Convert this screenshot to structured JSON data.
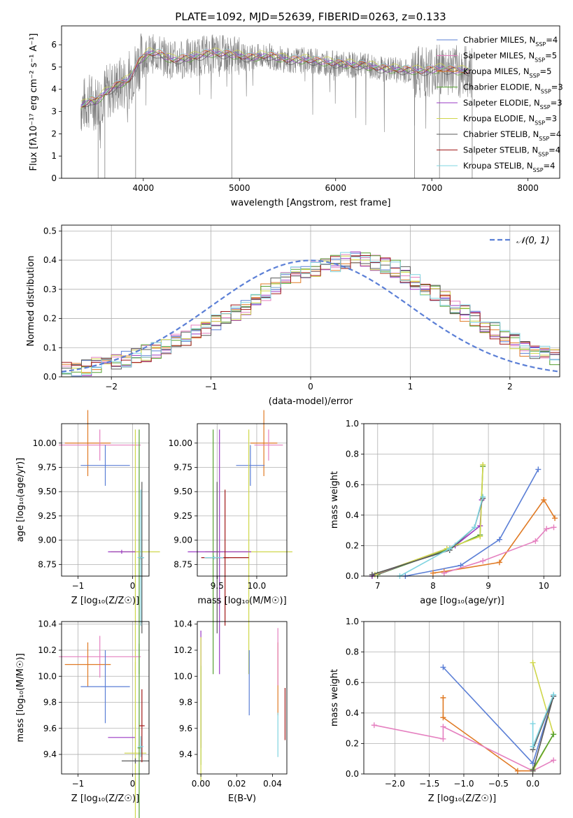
{
  "colors": {
    "blue": "#5b7fd6",
    "pink": "#e580c0",
    "orange": "#e07a24",
    "green": "#55a030",
    "purple": "#9a38c4",
    "yellow": "#cfd64a",
    "gray": "#5a5a5a",
    "red": "#a01818",
    "cyan": "#7fd4e0",
    "spectrum": "#808080",
    "grid": "#b0b0b0"
  },
  "chart_data": [
    {
      "type": "line",
      "title": "PLATE=1092, MJD=52639, FIBERID=0263, z=0.133",
      "xlabel": "wavelength [Angstrom, rest frame]",
      "ylabel": "Flux [fλ10⁻¹⁷ erg cm⁻² s⁻¹ A⁻¹]",
      "xlim": [
        3150,
        8330
      ],
      "ylim": [
        0,
        6.85
      ],
      "xticks": [
        "4000",
        "5000",
        "6000",
        "7000",
        "8000"
      ],
      "yticks": [
        "0",
        "1",
        "2",
        "3",
        "4",
        "5",
        "6"
      ],
      "grid": false,
      "legend_position": "right",
      "series": [
        {
          "name": "Chabrier MILES, N_SSP=4",
          "key": "blue"
        },
        {
          "name": "Salpeter MILES, N_SSP=5",
          "key": "pink"
        },
        {
          "name": "Kroupa MILES, N_SSP=5",
          "key": "orange"
        },
        {
          "name": "Chabrier ELODIE, N_SSP=3",
          "key": "green"
        },
        {
          "name": "Salpeter ELODIE, N_SSP=3",
          "key": "purple"
        },
        {
          "name": "Kroupa ELODIE, N_SSP=3",
          "key": "yellow"
        },
        {
          "name": "Chabrier STELIB, N_SSP=4",
          "key": "gray"
        },
        {
          "name": "Salpeter STELIB, N_SSP=4",
          "key": "red"
        },
        {
          "name": "Kroupa STELIB, N_SSP=4",
          "key": "cyan"
        }
      ],
      "continuum_x": [
        3350,
        3450,
        3500,
        3550,
        3600,
        3700,
        3800,
        3850,
        3950,
        4050,
        4150,
        4300,
        4500,
        4700,
        4900,
        5100,
        5300,
        5500,
        5700,
        5900,
        6100,
        6300,
        6500,
        6700,
        6900,
        7100,
        7300,
        7400
      ],
      "continuum_y": [
        3.2,
        3.5,
        3.4,
        3.6,
        3.8,
        4.1,
        4.3,
        4.4,
        5.2,
        5.6,
        5.6,
        5.3,
        5.4,
        5.6,
        5.55,
        5.4,
        5.5,
        5.3,
        5.3,
        5.2,
        5.1,
        5.05,
        4.9,
        4.85,
        4.8,
        4.9,
        4.8,
        4.8
      ]
    },
    {
      "type": "bar",
      "xlabel": "(data-model)/error",
      "ylabel": "Normed distribution",
      "xlim": [
        -2.5,
        2.5
      ],
      "ylim": [
        0,
        0.52
      ],
      "xticks": [
        "−2",
        "−1",
        "0",
        "1",
        "2"
      ],
      "yticks": [
        "0.0",
        "0.1",
        "0.2",
        "0.3",
        "0.4",
        "0.5"
      ],
      "grid": true,
      "legend_position": "top-right",
      "legend": "𝒩(0, 1)",
      "bin_width": 0.1,
      "bin_start": -2.5,
      "series_values": [
        0.02,
        0.02,
        0.03,
        0.04,
        0.04,
        0.05,
        0.06,
        0.07,
        0.08,
        0.09,
        0.1,
        0.12,
        0.13,
        0.15,
        0.17,
        0.19,
        0.2,
        0.22,
        0.24,
        0.27,
        0.29,
        0.31,
        0.33,
        0.35,
        0.36,
        0.37,
        0.38,
        0.39,
        0.4,
        0.41,
        0.4,
        0.39,
        0.38,
        0.37,
        0.35,
        0.33,
        0.31,
        0.29,
        0.27,
        0.24,
        0.22,
        0.2,
        0.18,
        0.16,
        0.14,
        0.12,
        0.1,
        0.09,
        0.08,
        0.07
      ]
    },
    {
      "type": "scatter",
      "xlabel": "Z [log₁₀(Z/Z☉)]",
      "ylabel": "age  [log₁₀(age/yr)]",
      "xlim": [
        -1.3,
        0.3
      ],
      "ylim": [
        8.63,
        10.2
      ],
      "xticks": [
        "−1",
        "0"
      ],
      "yticks": [
        "8.75",
        "9.00",
        "9.25",
        "9.50",
        "9.75",
        "10.00"
      ],
      "grid": true,
      "crosses": [
        {
          "key": "orange",
          "x": -0.82,
          "y": 10.0,
          "xe": 0.42,
          "ye": 0.34
        },
        {
          "key": "pink",
          "x": -0.6,
          "y": 9.98,
          "xe": 0.75,
          "ye": 0.16
        },
        {
          "key": "blue",
          "x": -0.5,
          "y": 9.77,
          "xe": 0.45,
          "ye": 0.21
        },
        {
          "key": "green",
          "x": 0.12,
          "y": 8.88,
          "xe": 0.03,
          "ye": 1.26
        },
        {
          "key": "yellow",
          "x": 0.05,
          "y": 8.88,
          "xe": 0.45,
          "ye": 1.26
        },
        {
          "key": "purple",
          "x": -0.2,
          "y": 8.88,
          "xe": 0.25,
          "ye": 0.02
        },
        {
          "key": "gray",
          "x": 0.17,
          "y": 8.82,
          "xe": 0.04,
          "ye": 0.78
        },
        {
          "key": "red",
          "x": 0.15,
          "y": 8.82,
          "xe": 0.03,
          "ye": 0.02
        },
        {
          "key": "cyan",
          "x": 0.15,
          "y": 8.82,
          "xe": 0.06,
          "ye": 0.7
        }
      ]
    },
    {
      "type": "scatter",
      "xlabel": "mass [log₁₀(M/M☉)]",
      "ylabel": "",
      "xlim": [
        9.25,
        10.38
      ],
      "ylim": [
        8.63,
        10.2
      ],
      "xticks": [
        "9.5",
        "10.0"
      ],
      "yticks": [
        "8.75",
        "9.00",
        "9.25",
        "9.50",
        "9.75",
        "10.00"
      ],
      "grid": true,
      "crosses": [
        {
          "key": "orange",
          "x": 10.09,
          "y": 10.0,
          "xe": 0.17,
          "ye": 0.34
        },
        {
          "key": "pink",
          "x": 10.15,
          "y": 9.98,
          "xe": 0.18,
          "ye": 0.16
        },
        {
          "key": "blue",
          "x": 9.92,
          "y": 9.77,
          "xe": 0.18,
          "ye": 0.21
        },
        {
          "key": "yellow",
          "x": 9.9,
          "y": 8.88,
          "xe": 0.55,
          "ye": 1.26
        },
        {
          "key": "green",
          "x": 9.45,
          "y": 8.88,
          "xe": 0.02,
          "ye": 1.26
        },
        {
          "key": "purple",
          "x": 9.53,
          "y": 8.88,
          "xe": 0.4,
          "ye": 1.26
        },
        {
          "key": "gray",
          "x": 9.5,
          "y": 8.82,
          "xe": 0.15,
          "ye": 0.78
        },
        {
          "key": "red",
          "x": 9.6,
          "y": 8.82,
          "xe": 0.3,
          "ye": 0.7
        },
        {
          "key": "cyan",
          "x": 9.46,
          "y": 8.82,
          "xe": 0.12,
          "ye": 0.02
        }
      ]
    },
    {
      "type": "line",
      "xlabel": "age  [log₁₀(age/yr)]",
      "ylabel": "mass weight",
      "xlim": [
        6.75,
        10.3
      ],
      "ylim": [
        0,
        1.0
      ],
      "xticks": [
        "7",
        "8",
        "9",
        "10"
      ],
      "yticks": [
        "0.0",
        "0.2",
        "0.4",
        "0.6",
        "0.8",
        "1.0"
      ],
      "grid": true,
      "series": [
        {
          "key": "blue",
          "x": [
            7.5,
            8.5,
            9.2,
            9.9
          ],
          "y": [
            0.0,
            0.07,
            0.24,
            0.7
          ]
        },
        {
          "key": "orange",
          "x": [
            8.0,
            8.2,
            9.2,
            10.0,
            10.2
          ],
          "y": [
            0.02,
            0.03,
            0.09,
            0.5,
            0.38
          ]
        },
        {
          "key": "pink",
          "x": [
            8.2,
            8.9,
            9.85,
            10.05,
            10.18
          ],
          "y": [
            0.02,
            0.1,
            0.23,
            0.31,
            0.32
          ]
        },
        {
          "key": "green",
          "x": [
            7.0,
            8.3,
            8.85,
            8.9
          ],
          "y": [
            0.01,
            0.18,
            0.27,
            0.72
          ]
        },
        {
          "key": "purple",
          "x": [
            6.9,
            8.4,
            8.85,
            8.88
          ],
          "y": [
            0.0,
            0.2,
            0.33,
            0.5
          ]
        },
        {
          "key": "yellow",
          "x": [
            6.95,
            8.25,
            8.85,
            8.9
          ],
          "y": [
            0.01,
            0.18,
            0.26,
            0.73
          ]
        },
        {
          "key": "gray",
          "x": [
            6.9,
            8.3,
            8.75,
            8.9
          ],
          "y": [
            0.01,
            0.17,
            0.32,
            0.51
          ]
        },
        {
          "key": "cyan",
          "x": [
            7.4,
            8.3,
            8.75,
            8.9
          ],
          "y": [
            0.0,
            0.18,
            0.32,
            0.52
          ]
        }
      ]
    },
    {
      "type": "scatter",
      "xlabel": "Z [log₁₀(Z/Z☉)]",
      "ylabel": "mass [log₁₀(M/M☉)]",
      "xlim": [
        -1.3,
        0.3
      ],
      "ylim": [
        9.25,
        10.42
      ],
      "xticks": [
        "−1",
        "0"
      ],
      "yticks": [
        "9.4",
        "9.6",
        "9.8",
        "10.0",
        "10.2",
        "10.4"
      ],
      "grid": true,
      "crosses": [
        {
          "key": "pink",
          "x": -0.6,
          "y": 10.15,
          "xe": 0.75,
          "ye": 0.16
        },
        {
          "key": "orange",
          "x": -0.82,
          "y": 10.09,
          "xe": 0.42,
          "ye": 0.17
        },
        {
          "key": "blue",
          "x": -0.5,
          "y": 9.92,
          "xe": 0.45,
          "ye": 0.28
        },
        {
          "key": "purple",
          "x": -0.2,
          "y": 9.53,
          "xe": 0.25,
          "ye": 0.0
        },
        {
          "key": "yellow",
          "x": 0.05,
          "y": 9.41,
          "xe": 0.2,
          "ye": 0.7
        },
        {
          "key": "green",
          "x": 0.12,
          "y": 9.45,
          "xe": 0.03,
          "ye": 0.8
        },
        {
          "key": "gray",
          "x": 0.05,
          "y": 9.35,
          "xe": 0.25,
          "ye": 0.02
        },
        {
          "key": "red",
          "x": 0.17,
          "y": 9.62,
          "xe": 0.05,
          "ye": 0.28
        },
        {
          "key": "cyan",
          "x": 0.15,
          "y": 9.46,
          "xe": 0.05,
          "ye": 0.08
        }
      ]
    },
    {
      "type": "scatter",
      "xlabel": "E(B-V)",
      "ylabel": "",
      "xlim": [
        -0.002,
        0.048
      ],
      "ylim": [
        9.25,
        10.42
      ],
      "xticks": [
        "0.00",
        "0.02",
        "0.04"
      ],
      "yticks": [
        "9.4",
        "9.6",
        "9.8",
        "10.0",
        "10.2",
        "10.4"
      ],
      "grid": false,
      "crosses": [
        {
          "key": "purple",
          "x": 0.0,
          "y": 9.9,
          "xe": 0.0,
          "ye": 0.45
        },
        {
          "key": "green",
          "x": 0.0,
          "y": 9.7,
          "xe": 0.0,
          "ye": 0.38
        },
        {
          "key": "yellow",
          "x": 0.0,
          "y": 9.75,
          "xe": 0.0,
          "ye": 0.55
        },
        {
          "key": "blue",
          "x": 0.027,
          "y": 9.95,
          "xe": 0.0,
          "ye": 0.25
        },
        {
          "key": "orange",
          "x": 0.043,
          "y": 9.98,
          "xe": 0.0,
          "ye": 0.28
        },
        {
          "key": "pink",
          "x": 0.043,
          "y": 10.15,
          "xe": 0.0,
          "ye": 0.22
        },
        {
          "key": "cyan",
          "x": 0.043,
          "y": 9.55,
          "xe": 0.0,
          "ye": 0.17
        },
        {
          "key": "red",
          "x": 0.047,
          "y": 9.71,
          "xe": 0.0,
          "ye": 0.2
        }
      ]
    },
    {
      "type": "line",
      "xlabel": "Z [log₁₀(Z/Z☉)]",
      "ylabel": "mass weight",
      "xlim": [
        -2.45,
        0.4
      ],
      "ylim": [
        0,
        1.0
      ],
      "xticks": [
        "−2.0",
        "−1.5",
        "−1.0",
        "−0.5",
        "0.0"
      ],
      "yticks": [
        "0.0",
        "0.2",
        "0.4",
        "0.6",
        "0.8",
        "1.0"
      ],
      "grid": true,
      "series": [
        {
          "key": "blue",
          "x": [
            -1.3,
            0.0,
            0.3
          ],
          "y": [
            0.7,
            0.07,
            0.51
          ]
        },
        {
          "key": "orange",
          "x": [
            -1.3,
            -1.3,
            -0.22,
            0.0
          ],
          "y": [
            0.5,
            0.37,
            0.02,
            0.02
          ]
        },
        {
          "key": "pink",
          "x": [
            -2.3,
            -1.3,
            -1.3,
            0.0,
            0.3
          ],
          "y": [
            0.32,
            0.23,
            0.31,
            0.02,
            0.09
          ]
        },
        {
          "key": "yellow",
          "x": [
            0.0,
            0.3,
            0.0
          ],
          "y": [
            0.73,
            0.26,
            0.02
          ]
        },
        {
          "key": "green",
          "x": [
            0.0,
            0.3
          ],
          "y": [
            0.03,
            0.26
          ]
        },
        {
          "key": "gray",
          "x": [
            0.0,
            0.3,
            0.0
          ],
          "y": [
            0.16,
            0.51,
            0.02
          ]
        },
        {
          "key": "cyan",
          "x": [
            0.0,
            0.0,
            0.3
          ],
          "y": [
            0.33,
            0.18,
            0.52
          ]
        }
      ]
    }
  ]
}
